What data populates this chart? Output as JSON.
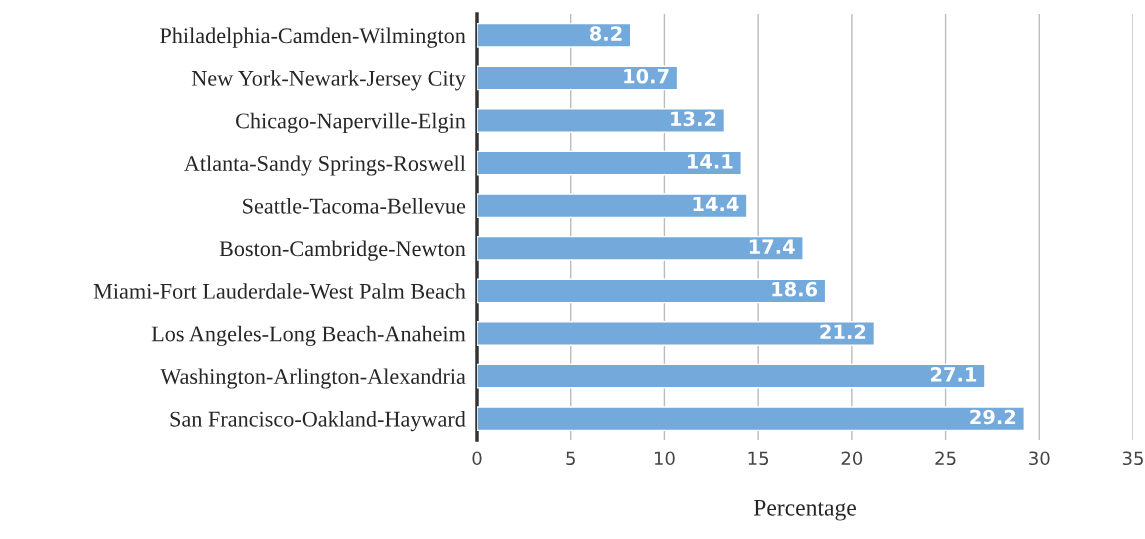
{
  "chart_data": {
    "type": "bar",
    "orientation": "horizontal",
    "xlabel": "Percentage",
    "categories": [
      "Philadelphia-Camden-Wilmington",
      "New York-Newark-Jersey City",
      "Chicago-Naperville-Elgin",
      "Atlanta-Sandy Springs-Roswell",
      "Seattle-Tacoma-Bellevue",
      "Boston-Cambridge-Newton",
      "Miami-Fort Lauderdale-West Palm Beach",
      "Los Angeles-Long Beach-Anaheim",
      "Washington-Arlington-Alexandria",
      "San Francisco-Oakland-Hayward"
    ],
    "values": [
      8.2,
      10.7,
      13.2,
      14.1,
      14.4,
      17.4,
      18.6,
      21.2,
      27.1,
      29.2
    ],
    "color": "#74a9dc",
    "xlim": [
      0,
      35
    ],
    "xticks": [
      0,
      5,
      10,
      15,
      20,
      25,
      30,
      35
    ],
    "grid": "x",
    "data_labels": true,
    "legend": false
  }
}
